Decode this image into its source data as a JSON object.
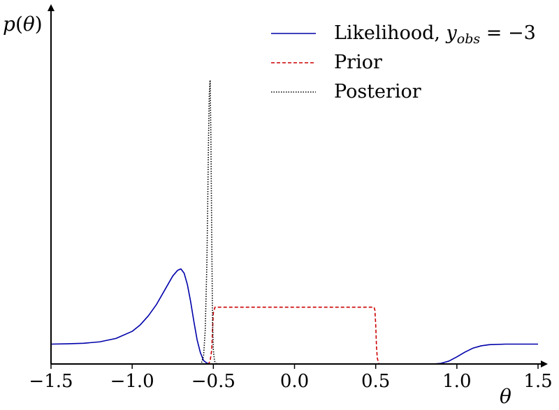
{
  "chart_data": {
    "type": "line",
    "title": "",
    "xlabel": "θ",
    "ylabel": "p(θ)",
    "xlim": [
      -1.5,
      1.5
    ],
    "ylim": [
      0,
      1.0
    ],
    "xticks": [
      -1.5,
      -1.0,
      -0.5,
      0.0,
      0.5,
      1.0,
      1.5
    ],
    "xtick_labels": [
      "−1.5",
      "−1.0",
      "−0.5",
      "0.0",
      "0.5",
      "1.0",
      "1.5"
    ],
    "grid": false,
    "legend_position": "top-right",
    "series": [
      {
        "name": "Likelihood, y_obs = −3",
        "legend_label_main": "Likelihood, ",
        "legend_label_var": "y",
        "legend_label_sub": "obs",
        "legend_label_tail": " = −3",
        "color": "#0000aa",
        "style": "solid",
        "x": [
          -1.5,
          -1.4,
          -1.3,
          -1.2,
          -1.1,
          -1.0,
          -0.95,
          -0.9,
          -0.85,
          -0.8,
          -0.75,
          -0.72,
          -0.7,
          -0.68,
          -0.66,
          -0.64,
          -0.62,
          -0.6,
          -0.58,
          -0.56,
          -0.54,
          -0.52,
          -0.5,
          0.0,
          0.85,
          0.9,
          0.95,
          1.0,
          1.05,
          1.1,
          1.15,
          1.2,
          1.3,
          1.4,
          1.5
        ],
        "y": [
          0.07,
          0.071,
          0.073,
          0.078,
          0.09,
          0.115,
          0.138,
          0.17,
          0.21,
          0.26,
          0.31,
          0.33,
          0.335,
          0.32,
          0.28,
          0.22,
          0.15,
          0.085,
          0.04,
          0.012,
          0.003,
          0.0,
          0.0,
          0.0,
          0.0,
          0.002,
          0.01,
          0.025,
          0.042,
          0.056,
          0.064,
          0.068,
          0.07,
          0.07,
          0.07
        ]
      },
      {
        "name": "Prior",
        "color": "#cc0000",
        "style": "dashed",
        "x": [
          -1.5,
          -0.53,
          -0.52,
          -0.51,
          -0.505,
          -0.5,
          -0.49,
          0.0,
          0.49,
          0.495,
          0.5,
          0.505,
          0.51,
          0.52,
          1.5
        ],
        "y": [
          0.0,
          0.0,
          0.01,
          0.05,
          0.12,
          0.18,
          0.2,
          0.2,
          0.2,
          0.19,
          0.14,
          0.06,
          0.02,
          0.0,
          0.0
        ]
      },
      {
        "name": "Posterior",
        "color": "#000000",
        "style": "dotted",
        "x": [
          -1.5,
          -0.575,
          -0.56,
          -0.55,
          -0.54,
          -0.535,
          -0.53,
          -0.525,
          -0.52,
          -0.515,
          -0.51,
          -0.505,
          -0.5,
          -0.495,
          -0.49,
          -0.48,
          1.5
        ],
        "y": [
          0.0,
          0.0,
          0.03,
          0.12,
          0.35,
          0.55,
          0.78,
          0.95,
          1.0,
          0.8,
          0.45,
          0.15,
          0.05,
          0.02,
          0.005,
          0.0,
          0.0
        ]
      }
    ]
  }
}
